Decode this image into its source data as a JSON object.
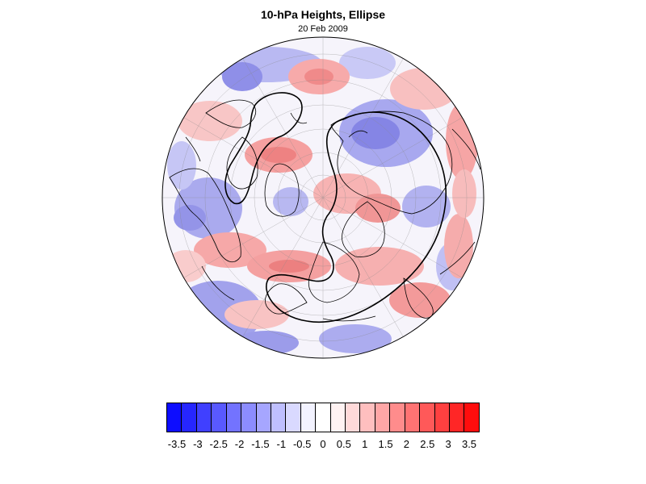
{
  "title": "10-hPa Heights, Ellipse",
  "subtitle": "20 Feb 2009",
  "map": {
    "projection": "north-polar-stereographic",
    "field": "10-hPa height anomaly (shaded)",
    "overlay": "ellipse contour (black)",
    "features": [
      "coastlines",
      "lat-lon-grid"
    ]
  },
  "colorbar": {
    "colors": [
      "#0d0dff",
      "#2626ff",
      "#4040ff",
      "#5959ff",
      "#7373ff",
      "#8c8cff",
      "#a6a6ff",
      "#bfbfff",
      "#d9d9ff",
      "#f2f2ff",
      "#ffffff",
      "#fff2f2",
      "#ffd9d9",
      "#ffbfbf",
      "#ffa6a6",
      "#ff8c8c",
      "#ff7373",
      "#ff5959",
      "#ff4040",
      "#ff2626",
      "#ff0d0d"
    ],
    "ticks": [
      "-3.5",
      "-3",
      "-2.5",
      "-2",
      "-1.5",
      "-1",
      "-0.5",
      "0",
      "0.5",
      "1",
      "1.5",
      "2",
      "2.5",
      "3",
      "3.5"
    ]
  }
}
